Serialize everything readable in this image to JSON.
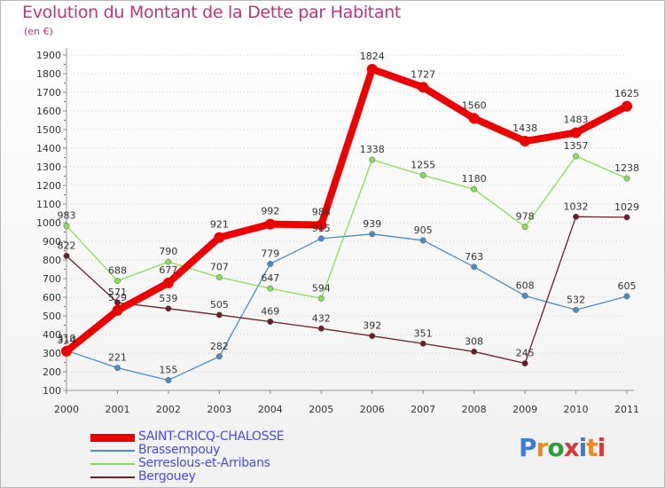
{
  "header": {
    "title": "Evolution du Montant de la Dette par Habitant",
    "unit": "(en €)"
  },
  "logo": {
    "text": "Proxiti",
    "colors": [
      "#3b7fd0",
      "#f08a1d",
      "#2e9e3c",
      "#d63a3a",
      "#3b7fd0",
      "#f08a1d",
      "#d63a3a"
    ]
  },
  "chart_data": {
    "type": "line",
    "title": "Evolution du Montant de la Dette par Habitant",
    "ylabel": "(en €)",
    "xlabel": "",
    "x": [
      "2000",
      "2001",
      "2002",
      "2003",
      "2004",
      "2005",
      "2006",
      "2007",
      "2008",
      "2009",
      "2010",
      "2011"
    ],
    "ylim": [
      100,
      1900
    ],
    "yticks": [
      100,
      200,
      300,
      400,
      500,
      600,
      700,
      800,
      900,
      1000,
      1100,
      1200,
      1300,
      1400,
      1500,
      1600,
      1700,
      1800,
      1900
    ],
    "grid": "horizontal dotted",
    "legend_position": "bottom-left",
    "series": [
      {
        "name": "SAINT-CRICQ-CHALOSSE",
        "color": "#ee0000",
        "values": [
          310,
          529,
          677,
          921,
          992,
          988,
          1824,
          1727,
          1560,
          1438,
          1483,
          1625
        ]
      },
      {
        "name": "Brassempouy",
        "color": "#4a8cc4",
        "values": [
          314,
          221,
          155,
          282,
          779,
          915,
          939,
          905,
          763,
          608,
          532,
          605
        ]
      },
      {
        "name": "Serreslous-et-Arribans",
        "color": "#8bdc56",
        "values": [
          983,
          688,
          790,
          707,
          647,
          594,
          1338,
          1255,
          1180,
          978,
          1357,
          1238
        ]
      },
      {
        "name": "Bergouey",
        "color": "#6b1f24",
        "values": [
          822,
          571,
          539,
          505,
          469,
          432,
          392,
          351,
          308,
          245,
          1032,
          1029
        ]
      }
    ]
  }
}
